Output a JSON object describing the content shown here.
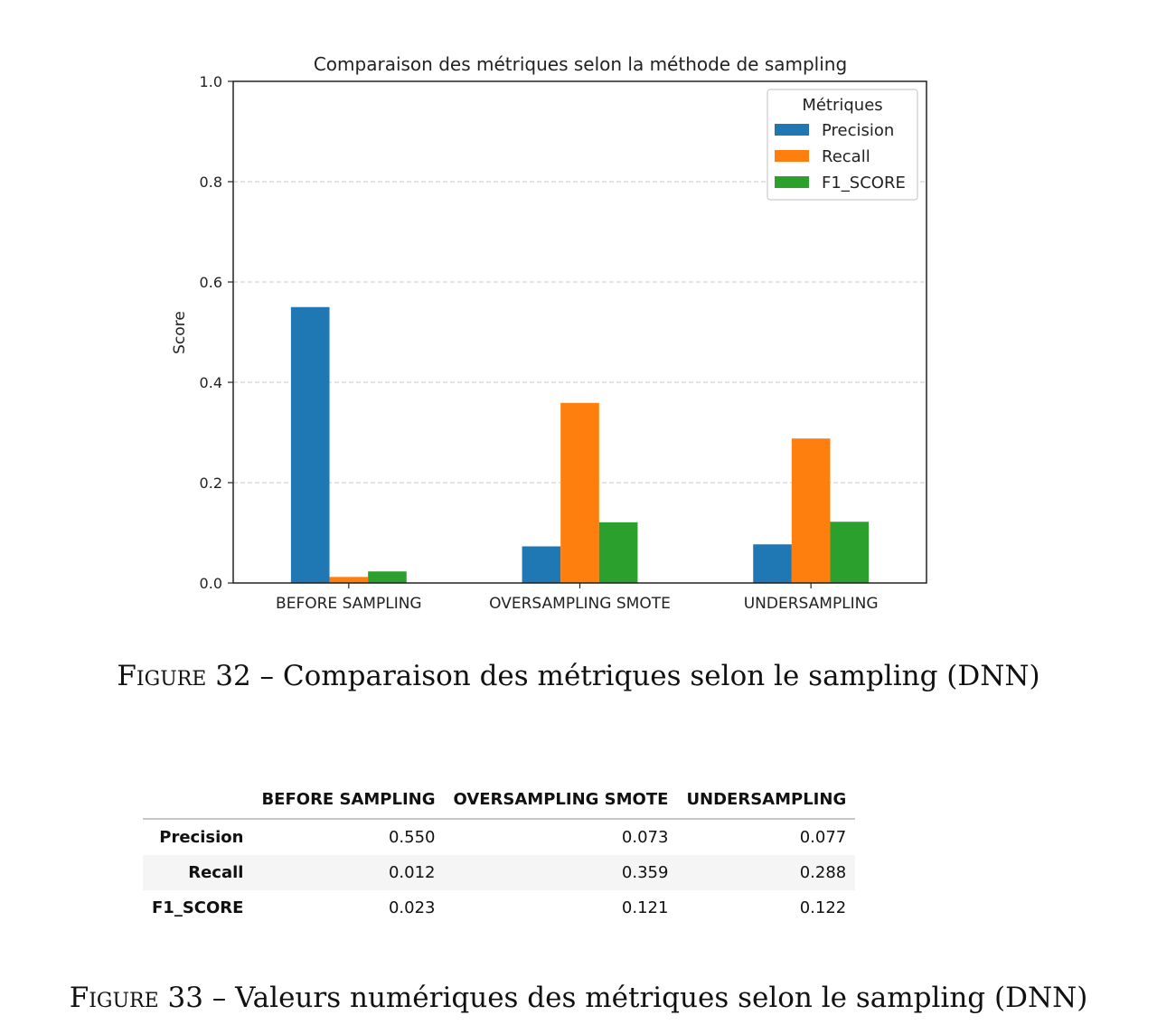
{
  "chart_data": {
    "type": "bar",
    "title": "Comparaison des métriques selon la méthode de sampling",
    "xlabel": "",
    "ylabel": "Score",
    "categories": [
      "BEFORE SAMPLING",
      "OVERSAMPLING SMOTE",
      "UNDERSAMPLING"
    ],
    "series": [
      {
        "name": "Precision",
        "color": "#1f77b4",
        "values": [
          0.55,
          0.073,
          0.077
        ]
      },
      {
        "name": "Recall",
        "color": "#ff7f0e",
        "values": [
          0.012,
          0.359,
          0.288
        ]
      },
      {
        "name": "F1_SCORE",
        "color": "#2ca02c",
        "values": [
          0.023,
          0.121,
          0.122
        ]
      }
    ],
    "ylim": [
      0,
      1.0
    ],
    "yticks": [
      "0.0",
      "0.2",
      "0.4",
      "0.6",
      "0.8",
      "1.0"
    ],
    "grid": "y, dashed",
    "legend": {
      "title": "Métriques",
      "placement": "top-right"
    }
  },
  "captions": {
    "figure32": {
      "prefix": "Figure 32",
      "text": " – Comparaison des métriques selon le sampling (DNN)"
    },
    "figure33": {
      "prefix": "Figure 33",
      "text": " – Valeurs numériques des métriques selon le sampling (DNN)"
    }
  },
  "table": {
    "columns": [
      "BEFORE SAMPLING",
      "OVERSAMPLING SMOTE",
      "UNDERSAMPLING"
    ],
    "rows": [
      {
        "label": "Precision",
        "values": [
          "0.550",
          "0.073",
          "0.077"
        ]
      },
      {
        "label": "Recall",
        "values": [
          "0.012",
          "0.359",
          "0.288"
        ]
      },
      {
        "label": "F1_SCORE",
        "values": [
          "0.023",
          "0.121",
          "0.122"
        ]
      }
    ]
  }
}
